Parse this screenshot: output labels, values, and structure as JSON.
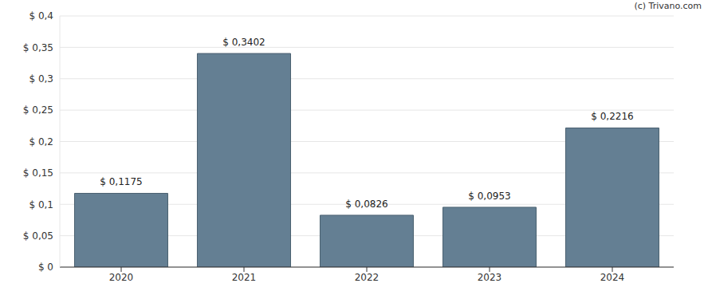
{
  "chart_data": {
    "type": "bar",
    "annotation": "(c) Trivano.com",
    "categories": [
      "2020",
      "2021",
      "2022",
      "2023",
      "2024"
    ],
    "values": [
      0.1175,
      0.3402,
      0.0826,
      0.0953,
      0.2216
    ],
    "value_labels": [
      "$ 0,1175",
      "$ 0,3402",
      "$ 0,0826",
      "$ 0,0953",
      "$ 0,2216"
    ],
    "data_labels": true,
    "color": "#647f93",
    "ylim": [
      0,
      0.4
    ],
    "yticks": [
      {
        "value": 0,
        "label": "$ 0"
      },
      {
        "value": 0.05,
        "label": "$ 0,05"
      },
      {
        "value": 0.1,
        "label": "$ 0,1"
      },
      {
        "value": 0.15,
        "label": "$ 0,15"
      },
      {
        "value": 0.2,
        "label": "$ 0,2"
      },
      {
        "value": 0.25,
        "label": "$ 0,25"
      },
      {
        "value": 0.3,
        "label": "$ 0,3"
      },
      {
        "value": 0.35,
        "label": "$ 0,35"
      },
      {
        "value": 0.4,
        "label": "$ 0,4"
      }
    ],
    "grid": true
  }
}
